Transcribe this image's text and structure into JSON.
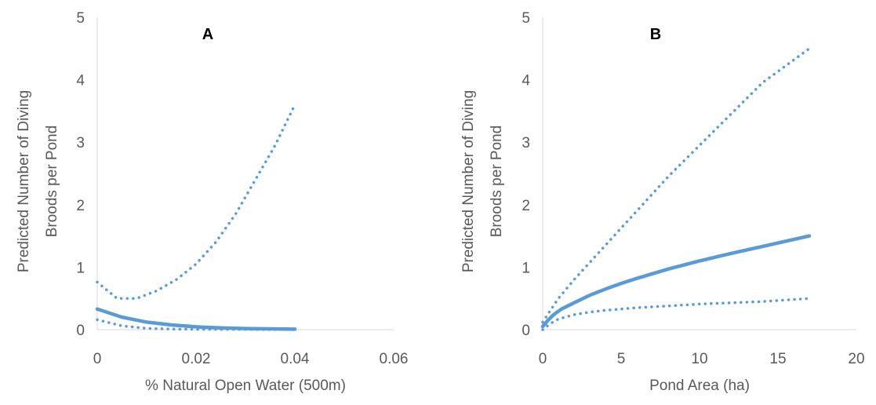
{
  "chart_data": [
    {
      "type": "line",
      "title": "A",
      "xlabel": "% Natural Open Water (500m)",
      "ylabel_lines": [
        "Predicted Number of Diving",
        "Broods per Pond"
      ],
      "xlim": [
        0,
        0.06
      ],
      "ylim": [
        0,
        5
      ],
      "xticks": [
        0,
        0.02,
        0.04,
        0.06
      ],
      "xtick_labels": [
        "0",
        "0.02",
        "0.04",
        "0.06"
      ],
      "yticks": [
        0,
        1,
        2,
        3,
        4,
        5
      ],
      "ytick_labels": [
        "0",
        "1",
        "2",
        "3",
        "4",
        "5"
      ],
      "grid": false,
      "color": "#5b9bd5",
      "series": [
        {
          "style": "solid",
          "x": [
            0,
            0.005,
            0.01,
            0.015,
            0.02,
            0.025,
            0.03,
            0.035,
            0.04
          ],
          "y": [
            0.33,
            0.2,
            0.12,
            0.075,
            0.045,
            0.028,
            0.017,
            0.012,
            0.008
          ]
        },
        {
          "style": "dotted",
          "x": [
            0,
            0.004,
            0.008,
            0.012,
            0.016,
            0.02,
            0.024,
            0.028,
            0.032,
            0.036,
            0.04
          ],
          "y": [
            0.76,
            0.5,
            0.5,
            0.62,
            0.8,
            1.05,
            1.4,
            1.85,
            2.4,
            2.95,
            3.6
          ]
        },
        {
          "style": "dotted",
          "x": [
            0,
            0.005,
            0.01,
            0.015,
            0.02,
            0.03,
            0.04
          ],
          "y": [
            0.16,
            0.06,
            0.02,
            0.01,
            0.005,
            0.002,
            0.001
          ]
        }
      ]
    },
    {
      "type": "line",
      "title": "B",
      "xlabel": "Pond Area (ha)",
      "ylabel_lines": [
        "Predicted Number of Diving",
        "Broods per Pond"
      ],
      "xlim": [
        0,
        20
      ],
      "ylim": [
        0,
        5
      ],
      "xticks": [
        0,
        5,
        10,
        15,
        20
      ],
      "xtick_labels": [
        "0",
        "5",
        "10",
        "15",
        "20"
      ],
      "yticks": [
        0,
        1,
        2,
        3,
        4,
        5
      ],
      "ytick_labels": [
        "0",
        "1",
        "2",
        "3",
        "4",
        "5"
      ],
      "grid": false,
      "color": "#5b9bd5",
      "series": [
        {
          "style": "solid",
          "x": [
            0,
            0.3,
            0.7,
            1.2,
            2,
            3,
            4,
            5,
            6,
            8,
            10,
            12,
            14,
            17
          ],
          "y": [
            0.05,
            0.14,
            0.24,
            0.33,
            0.43,
            0.55,
            0.65,
            0.74,
            0.82,
            0.97,
            1.1,
            1.22,
            1.33,
            1.5
          ]
        },
        {
          "style": "dotted",
          "x": [
            0,
            1,
            2,
            4,
            6,
            8,
            10,
            12,
            14,
            17
          ],
          "y": [
            0.12,
            0.5,
            0.8,
            1.35,
            1.9,
            2.45,
            2.95,
            3.45,
            3.95,
            4.5
          ]
        },
        {
          "style": "dotted",
          "x": [
            0,
            0.5,
            1,
            2,
            3,
            4,
            6,
            8,
            10,
            12,
            14,
            17
          ],
          "y": [
            0.0,
            0.1,
            0.17,
            0.24,
            0.28,
            0.31,
            0.35,
            0.38,
            0.41,
            0.43,
            0.45,
            0.5
          ]
        }
      ]
    }
  ]
}
